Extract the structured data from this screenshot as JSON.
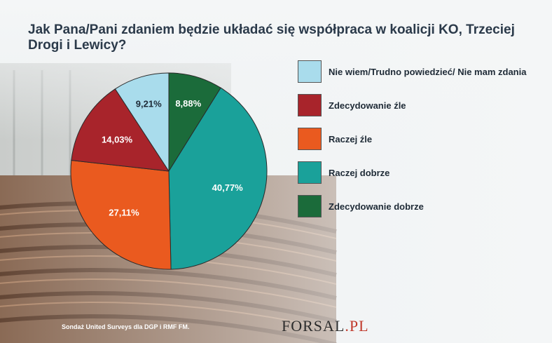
{
  "title": "Jak Pana/Pani zdaniem będzie układać się współpraca w koalicji KO, Trzeciej Drogi i Lewicy?",
  "source": "Sondaż United Surveys dla DGP i RMF FM.",
  "brand": {
    "name": "FORSAL",
    "suffix": ".PL"
  },
  "chart_data": {
    "type": "pie",
    "slices": [
      {
        "label": "Zdecydowanie dobrze",
        "value": 8.88,
        "value_label": "8,88%",
        "color": "#1b6b3a",
        "text_color": "#ffffff"
      },
      {
        "label": "Raczej dobrze",
        "value": 40.77,
        "value_label": "40,77%",
        "color": "#1aa19a",
        "text_color": "#ffffff"
      },
      {
        "label": "Raczej źle",
        "value": 27.11,
        "value_label": "27,11%",
        "color": "#ea5a1f",
        "text_color": "#ffffff"
      },
      {
        "label": "Zdecydowanie źle",
        "value": 14.03,
        "value_label": "14,03%",
        "color": "#a8242b",
        "text_color": "#ffffff"
      },
      {
        "label": "Nie wiem/Trudno powiedzieć/ Nie mam zdania",
        "value": 9.21,
        "value_label": "9,21%",
        "color": "#a9dcec",
        "text_color": "#1e2a36"
      }
    ],
    "legend_order": [
      "Nie wiem/Trudno powiedzieć/ Nie mam zdania",
      "Zdecydowanie źle",
      "Raczej źle",
      "Raczej dobrze",
      "Zdecydowanie dobrze"
    ],
    "legend_position": "right"
  }
}
